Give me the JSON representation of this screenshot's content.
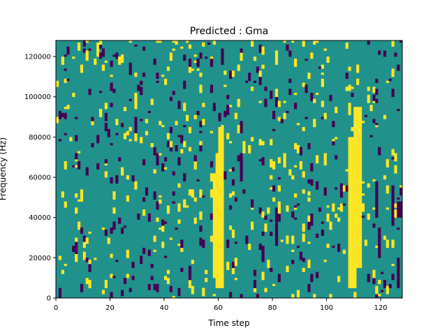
{
  "chart_data": {
    "type": "heatmap",
    "title": "Predicted : Gma",
    "xlabel": "Time step",
    "ylabel": "Frequency (Hz)",
    "xlim": [
      0,
      128
    ],
    "ylim": [
      0,
      128000
    ],
    "x_ticks": [
      0,
      20,
      40,
      60,
      80,
      100,
      120
    ],
    "x_tick_labels": [
      "0",
      "20",
      "40",
      "60",
      "80",
      "100",
      "120"
    ],
    "y_ticks": [
      0,
      20000,
      40000,
      60000,
      80000,
      100000,
      120000
    ],
    "y_tick_labels": [
      "0",
      "20000",
      "40000",
      "60000",
      "80000",
      "100000",
      "120000"
    ],
    "grid": false,
    "colormap": "viridis",
    "levels": {
      "low": "#440154",
      "mid": "#21918c",
      "high": "#fde725"
    },
    "background_level": "mid",
    "time_steps": 128,
    "frequency_bins": 128,
    "bin_width_hz": 1000,
    "high_regions": [
      {
        "t": [
          58,
          61
        ],
        "f_hz": [
          10000,
          62000
        ]
      },
      {
        "t": [
          59,
          62
        ],
        "f_hz": [
          5000,
          72000
        ]
      },
      {
        "t": [
          60,
          62
        ],
        "f_hz": [
          62000,
          85000
        ]
      },
      {
        "t": [
          108,
          111
        ],
        "f_hz": [
          5000,
          80000
        ]
      },
      {
        "t": [
          110,
          113
        ],
        "f_hz": [
          15000,
          95000
        ]
      },
      {
        "t": [
          112,
          113
        ],
        "f_hz": [
          50000,
          70000
        ]
      }
    ],
    "low_regions": [
      {
        "t": [
          68,
          69
        ],
        "f_hz": [
          58000,
          72000
        ]
      },
      {
        "t": [
          76,
          77
        ],
        "f_hz": [
          18000,
          26000
        ]
      },
      {
        "t": [
          81,
          82
        ],
        "f_hz": [
          26000,
          45000
        ]
      },
      {
        "t": [
          82,
          83
        ],
        "f_hz": [
          8000,
          12000
        ]
      },
      {
        "t": [
          94,
          95
        ],
        "f_hz": [
          36000,
          42000
        ]
      },
      {
        "t": [
          118,
          119
        ],
        "f_hz": [
          40000,
          58000
        ]
      },
      {
        "t": [
          119,
          120
        ],
        "f_hz": [
          20000,
          35000
        ]
      },
      {
        "t": [
          124,
          125
        ],
        "f_hz": [
          36000,
          56000
        ]
      },
      {
        "t": [
          126,
          128
        ],
        "f_hz": [
          40000,
          48000
        ]
      },
      {
        "t": [
          126,
          127
        ],
        "f_hz": [
          5000,
          20000
        ]
      }
    ]
  }
}
